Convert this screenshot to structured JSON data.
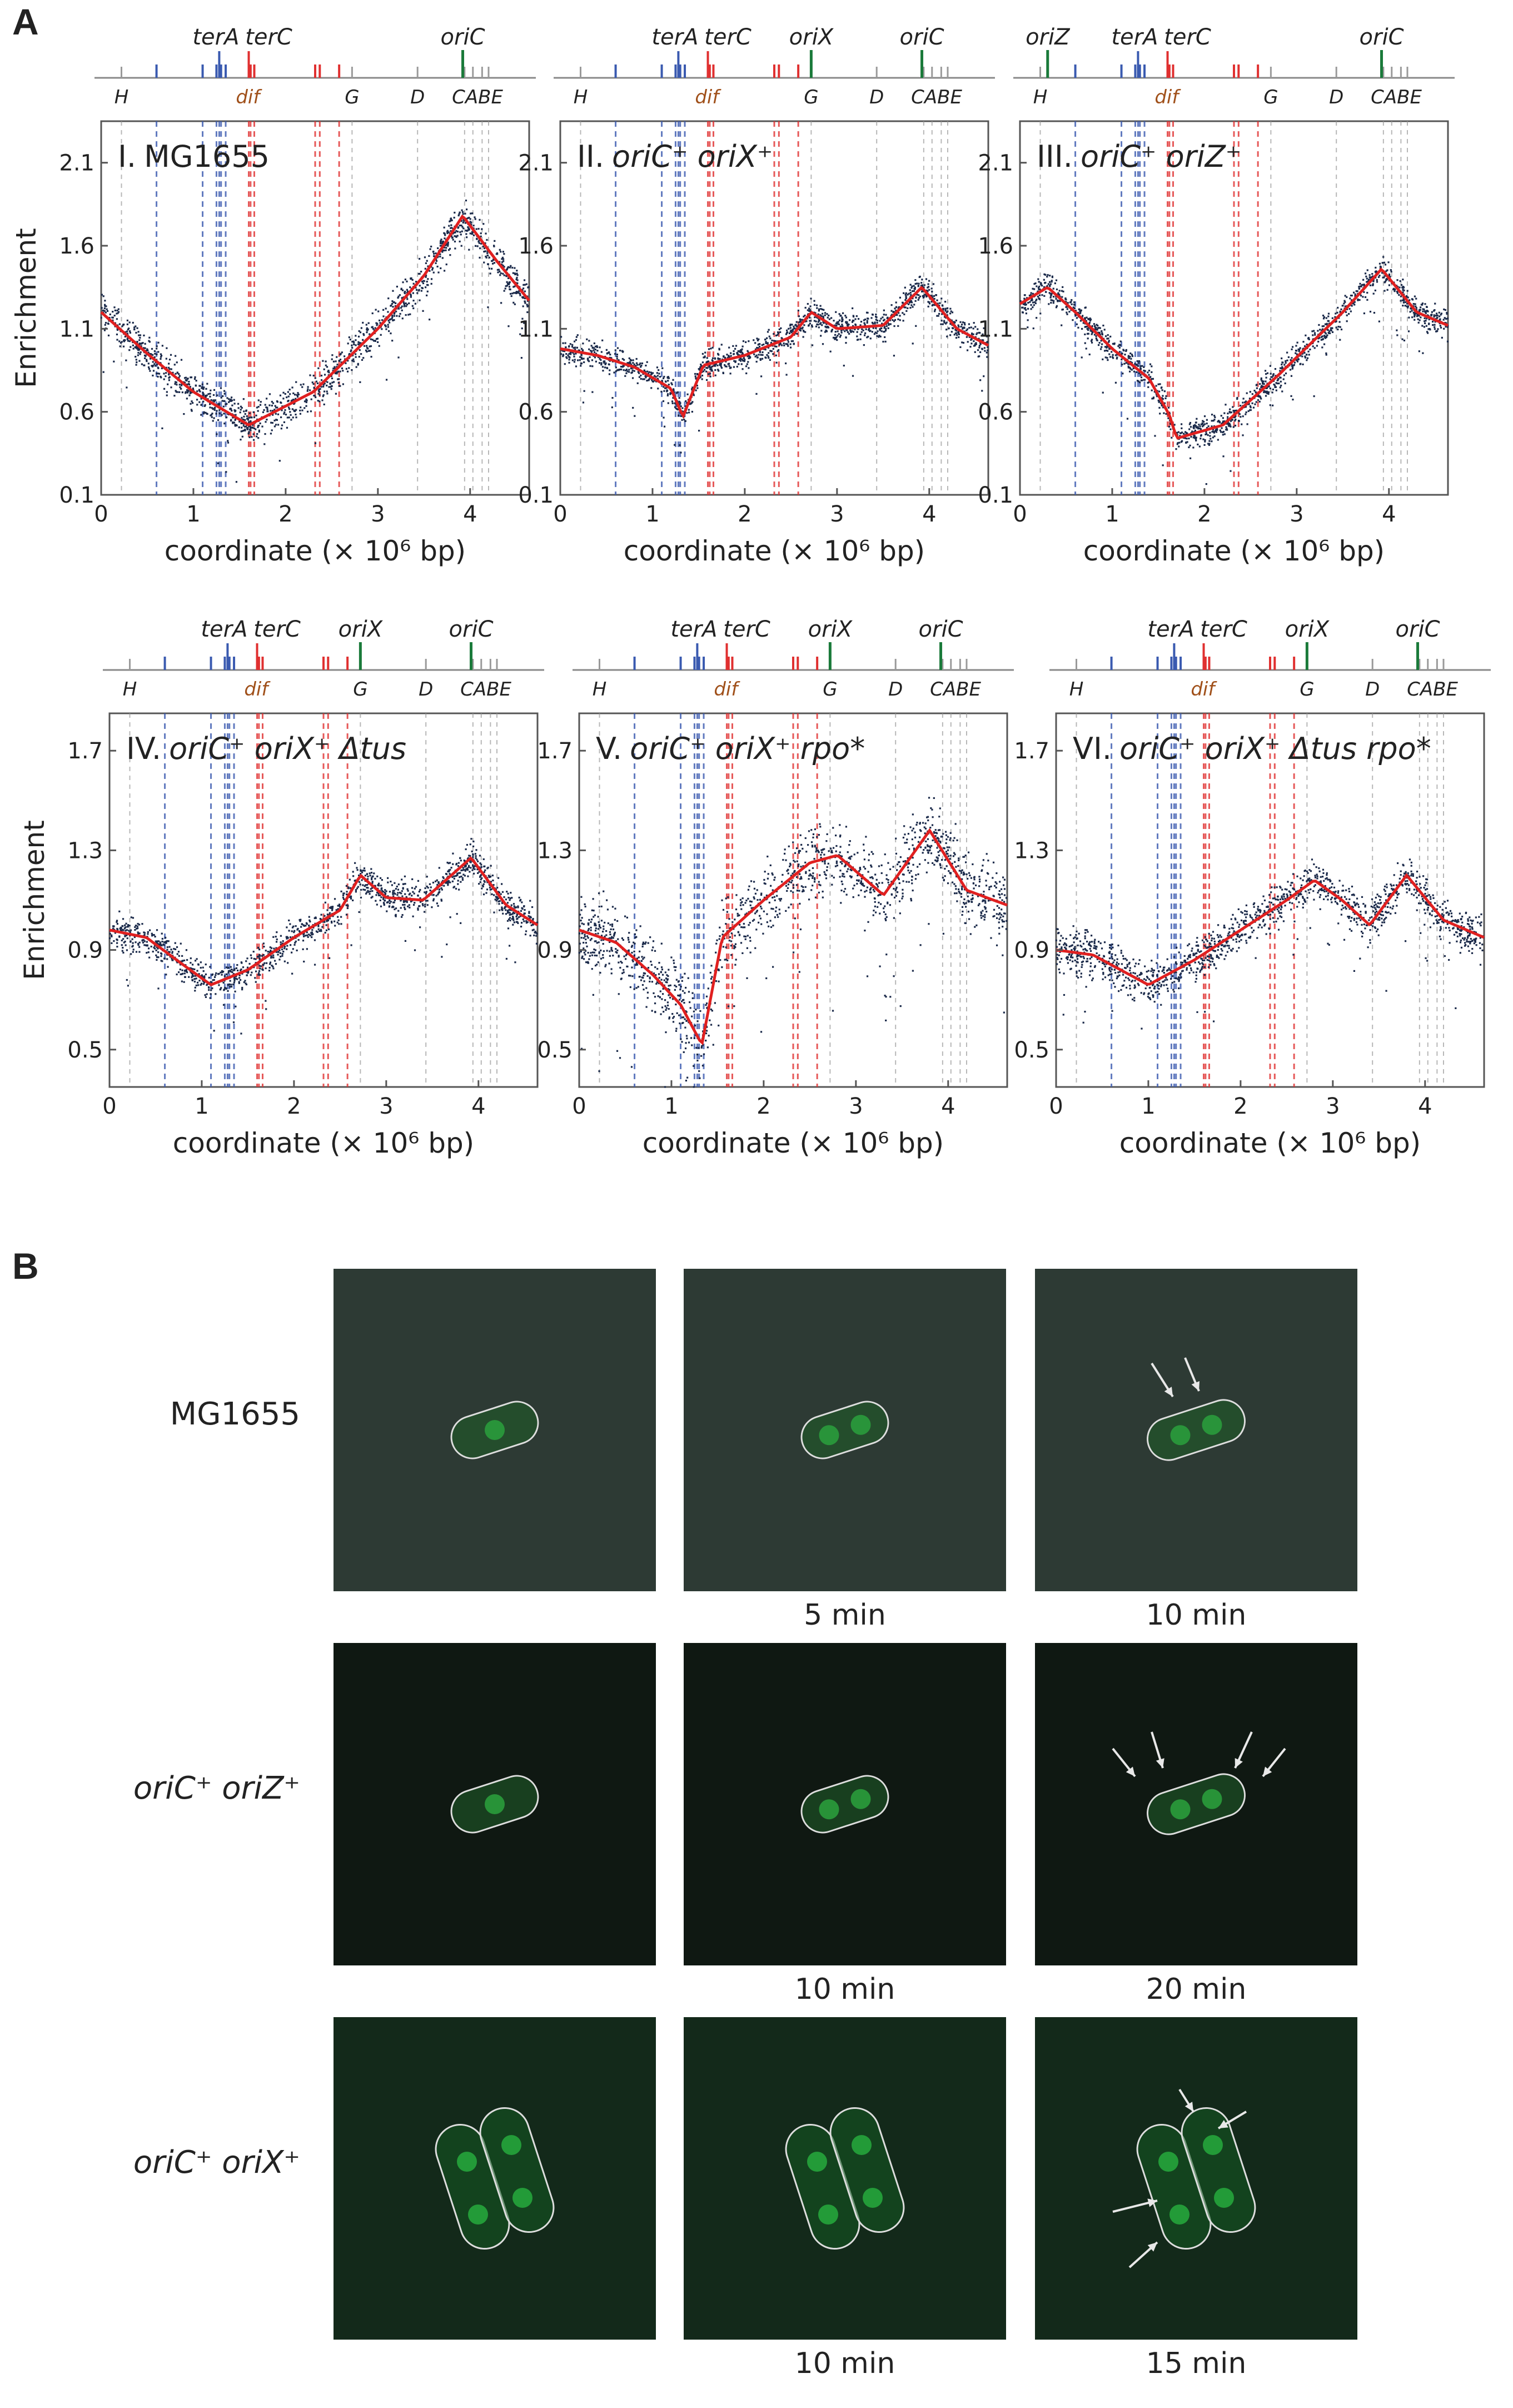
{
  "figure": {
    "panel_a_letter": "A",
    "panel_b_letter": "B",
    "genome_length_mbp": 4.64,
    "colors": {
      "data_points": "#1b2a4a",
      "fit_line": "#e02020",
      "ter_blue": "#3a5ab0",
      "ter_red": "#e03030",
      "origin_green": "#1a7a3a",
      "gene_gray": "#9a9a9a",
      "dif_label": "#a0501a"
    },
    "map_features": {
      "terA": 1.28,
      "terC": 1.6,
      "dif": 1.59,
      "oriC": 3.92,
      "oriX": 2.72,
      "oriZ": 0.3,
      "H": 0.22,
      "G": 2.72,
      "D": 3.43,
      "C": 3.94,
      "A": 4.03,
      "B": 4.13,
      "E": 4.2,
      "blue_ter_sites": [
        0.6,
        1.1,
        1.25,
        1.3,
        1.35
      ],
      "red_ter_sites": [
        1.62,
        1.66,
        2.32,
        2.37,
        2.58
      ]
    },
    "map_labels": {
      "terA": "terA",
      "terC": "terC",
      "oriC": "oriC",
      "oriX": "oriX",
      "oriZ": "oriZ",
      "dif": "dif",
      "H": "H",
      "G": "G",
      "D": "D",
      "CABE": "CABE"
    },
    "xlabel": "coordinate (× 10⁶ bp)",
    "ylabel": "Enrichment"
  },
  "chart_data": [
    {
      "type": "scatter",
      "panel": "I",
      "title": "I. MG1655",
      "title_roman": "I.",
      "title_strain": "MG1655",
      "title_italic": false,
      "origins": [
        "oriC"
      ],
      "xlabel": "coordinate (× 10⁶ bp)",
      "ylabel": "Enrichment",
      "xlim": [
        0,
        4.64
      ],
      "ylim": [
        0.1,
        2.35
      ],
      "xticks": [
        0,
        1,
        2,
        3,
        4
      ],
      "yticks": [
        0.1,
        0.6,
        1.1,
        1.6,
        2.1
      ],
      "fit": {
        "x": [
          0,
          0.5,
          1.0,
          1.6,
          2.3,
          3.0,
          3.5,
          3.92,
          4.3,
          4.64
        ],
        "y": [
          1.2,
          0.95,
          0.72,
          0.52,
          0.72,
          1.1,
          1.42,
          1.78,
          1.5,
          1.27
        ]
      },
      "noise": 0.07
    },
    {
      "type": "scatter",
      "panel": "II",
      "title": "II. oriC⁺ oriX⁺",
      "title_roman": "II.",
      "title_strain": "oriC⁺ oriX⁺",
      "title_italic": true,
      "origins": [
        "oriX",
        "oriC"
      ],
      "xlabel": "coordinate (× 10⁶ bp)",
      "ylabel": "",
      "xlim": [
        0,
        4.64
      ],
      "ylim": [
        0.1,
        2.35
      ],
      "xticks": [
        0,
        1,
        2,
        3,
        4
      ],
      "yticks": [
        0.1,
        0.6,
        1.1,
        1.6,
        2.1
      ],
      "fit": {
        "x": [
          0,
          0.4,
          0.8,
          1.2,
          1.33,
          1.55,
          2.0,
          2.5,
          2.72,
          3.0,
          3.5,
          3.92,
          4.3,
          4.64
        ],
        "y": [
          0.98,
          0.94,
          0.87,
          0.74,
          0.57,
          0.88,
          0.94,
          1.05,
          1.2,
          1.1,
          1.12,
          1.35,
          1.1,
          1.0
        ]
      },
      "noise": 0.05
    },
    {
      "type": "scatter",
      "panel": "III",
      "title": "III. oriC⁺ oriZ⁺",
      "title_roman": "III.",
      "title_strain": "oriC⁺ oriZ⁺",
      "title_italic": true,
      "origins": [
        "oriZ",
        "oriC"
      ],
      "xlabel": "coordinate (× 10⁶ bp)",
      "ylabel": "",
      "xlim": [
        0,
        4.64
      ],
      "ylim": [
        0.1,
        2.35
      ],
      "xticks": [
        0,
        1,
        2,
        3,
        4
      ],
      "yticks": [
        0.1,
        0.6,
        1.1,
        1.6,
        2.1
      ],
      "fit": {
        "x": [
          0,
          0.3,
          0.6,
          1.0,
          1.4,
          1.62,
          1.7,
          2.2,
          2.8,
          3.5,
          3.92,
          4.3,
          4.64
        ],
        "y": [
          1.25,
          1.35,
          1.2,
          0.98,
          0.8,
          0.58,
          0.44,
          0.52,
          0.82,
          1.2,
          1.46,
          1.2,
          1.12
        ]
      },
      "noise": 0.05
    },
    {
      "type": "scatter",
      "panel": "IV",
      "title": "IV. oriC⁺ oriX⁺ Δtus",
      "title_roman": "IV.",
      "title_strain": "oriC⁺ oriX⁺ Δtus",
      "title_italic": true,
      "origins": [
        "oriX",
        "oriC"
      ],
      "xlabel": "coordinate (× 10⁶ bp)",
      "ylabel": "Enrichment",
      "xlim": [
        0,
        4.64
      ],
      "ylim": [
        0.35,
        1.85
      ],
      "xticks": [
        0,
        1,
        2,
        3,
        4
      ],
      "yticks": [
        0.5,
        0.9,
        1.3,
        1.7
      ],
      "fit": {
        "x": [
          0,
          0.4,
          0.8,
          1.1,
          1.5,
          2.0,
          2.5,
          2.72,
          3.0,
          3.4,
          3.92,
          4.3,
          4.64
        ],
        "y": [
          0.98,
          0.95,
          0.84,
          0.76,
          0.82,
          0.95,
          1.06,
          1.2,
          1.11,
          1.1,
          1.27,
          1.08,
          1.0
        ]
      },
      "noise": 0.04
    },
    {
      "type": "scatter",
      "panel": "V",
      "title": "V. oriC⁺ oriX⁺ rpo*",
      "title_roman": "V.",
      "title_strain": "oriC⁺ oriX⁺ rpo*",
      "title_italic": true,
      "origins": [
        "oriX",
        "oriC"
      ],
      "xlabel": "coordinate (× 10⁶ bp)",
      "ylabel": "",
      "xlim": [
        0,
        4.64
      ],
      "ylim": [
        0.35,
        1.85
      ],
      "xticks": [
        0,
        1,
        2,
        3,
        4
      ],
      "yticks": [
        0.5,
        0.9,
        1.3,
        1.7
      ],
      "fit": {
        "x": [
          0,
          0.4,
          0.8,
          1.1,
          1.33,
          1.55,
          2.0,
          2.5,
          2.8,
          3.3,
          3.8,
          4.2,
          4.64
        ],
        "y": [
          0.98,
          0.93,
          0.8,
          0.68,
          0.52,
          0.95,
          1.1,
          1.25,
          1.28,
          1.12,
          1.38,
          1.14,
          1.08
        ]
      },
      "noise": 0.09
    },
    {
      "type": "scatter",
      "panel": "VI",
      "title": "VI. oriC⁺ oriX⁺ Δtus rpo*",
      "title_roman": "VI.",
      "title_strain": "oriC⁺ oriX⁺ Δtus rpo*",
      "title_italic": true,
      "origins": [
        "oriX",
        "oriC"
      ],
      "xlabel": "coordinate (× 10⁶ bp)",
      "ylabel": "",
      "xlim": [
        0,
        4.64
      ],
      "ylim": [
        0.35,
        1.85
      ],
      "xticks": [
        0,
        1,
        2,
        3,
        4
      ],
      "yticks": [
        0.5,
        0.9,
        1.3,
        1.7
      ],
      "fit": {
        "x": [
          0,
          0.4,
          0.8,
          1.0,
          1.5,
          2.0,
          2.5,
          2.8,
          3.1,
          3.4,
          3.8,
          4.2,
          4.64
        ],
        "y": [
          0.9,
          0.88,
          0.8,
          0.76,
          0.86,
          0.98,
          1.1,
          1.18,
          1.1,
          1.0,
          1.2,
          1.02,
          0.95
        ]
      },
      "noise": 0.05
    }
  ],
  "panel_b": {
    "rows": [
      {
        "label": "MG1655",
        "italic": false,
        "bg": "#2d3a34",
        "times": [
          "",
          "5 min",
          "10 min"
        ],
        "arrows_in_last": 2,
        "single_cell": true
      },
      {
        "label": "oriC⁺ oriZ⁺",
        "italic": true,
        "bg": "#0f1812",
        "times": [
          "",
          "10 min",
          "20 min"
        ],
        "arrows_in_last": 4,
        "single_cell": true
      },
      {
        "label": "oriC⁺ oriX⁺",
        "italic": true,
        "bg": "#13291a",
        "times": [
          "",
          "10 min",
          "15 min"
        ],
        "arrows_in_last": 4,
        "single_cell": false
      }
    ]
  }
}
